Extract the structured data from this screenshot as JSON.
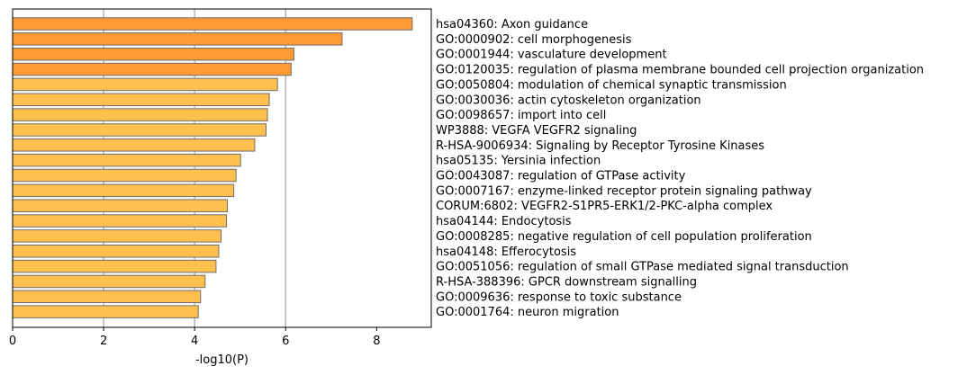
{
  "chart_data": {
    "type": "bar",
    "orientation": "horizontal",
    "title": "",
    "xlabel": "-log10(P)",
    "ylabel": "",
    "xlim": [
      0,
      9.2
    ],
    "xticks": [
      0,
      2,
      4,
      6,
      8
    ],
    "grid": "vertical lines at x=2, 4, 6",
    "legend": "none",
    "colors": {
      "strong": "#ff9933",
      "weak": "#ffc04d",
      "bar_edge": "#6e6e6e",
      "grid": "#b3b3b3"
    },
    "categories": [
      "hsa04360: Axon guidance",
      "GO:0000902: cell morphogenesis",
      "GO:0001944: vasculature development",
      "GO:0120035: regulation of plasma membrane bounded cell projection organization",
      "GO:0050804: modulation of chemical synaptic transmission",
      "GO:0030036: actin cytoskeleton organization",
      "GO:0098657: import into cell",
      "WP3888: VEGFA VEGFR2 signaling",
      "R-HSA-9006934: Signaling by Receptor Tyrosine Kinases",
      "hsa05135: Yersinia infection",
      "GO:0043087: regulation of GTPase activity",
      "GO:0007167: enzyme-linked receptor protein signaling pathway",
      "CORUM:6802: VEGFR2-S1PR5-ERK1/2-PKC-alpha complex",
      "hsa04144: Endocytosis",
      "GO:0008285: negative regulation of cell population proliferation",
      "hsa04148: Efferocytosis",
      "GO:0051056: regulation of small GTPase mediated signal transduction",
      "R-HSA-388396: GPCR downstream signalling",
      "GO:0009636: response to toxic substance",
      "GO:0001764: neuron migration"
    ],
    "values": [
      8.78,
      7.24,
      6.18,
      6.12,
      5.82,
      5.64,
      5.6,
      5.57,
      5.32,
      5.01,
      4.91,
      4.86,
      4.72,
      4.7,
      4.58,
      4.53,
      4.47,
      4.23,
      4.13,
      4.08
    ]
  }
}
